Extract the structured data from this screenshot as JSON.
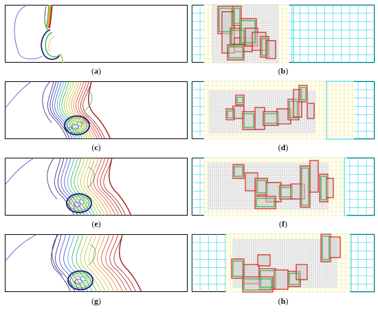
{
  "figure": {
    "panels": [
      {
        "id": "a",
        "caption_open": "(",
        "caption_letter": "a",
        "caption_close": ")",
        "kind": "contour"
      },
      {
        "id": "b",
        "caption_open": "(",
        "caption_letter": "b",
        "caption_close": ")",
        "kind": "mesh"
      },
      {
        "id": "c",
        "caption_open": "(",
        "caption_letter": "c",
        "caption_close": ")",
        "kind": "contour"
      },
      {
        "id": "d",
        "caption_open": "(",
        "caption_letter": "d",
        "caption_close": ")",
        "kind": "mesh"
      },
      {
        "id": "e",
        "caption_open": "(",
        "caption_letter": "e",
        "caption_close": ")",
        "kind": "contour"
      },
      {
        "id": "f",
        "caption_open": "(",
        "caption_letter": "f",
        "caption_close": ")",
        "kind": "mesh"
      },
      {
        "id": "g",
        "caption_open": "(",
        "caption_letter": "g",
        "caption_close": ")",
        "kind": "contour"
      },
      {
        "id": "h",
        "caption_open": "(",
        "caption_letter": "h",
        "caption_close": ")",
        "kind": "mesh"
      }
    ],
    "colors": {
      "frame": "#000000",
      "mesh_coarse": "#22d3e0",
      "mesh_medium": "#f4ea6a",
      "mesh_fine": "#9a9a9a",
      "patch_red": "#d42020",
      "patch_green": "#22a022",
      "contour_scale": [
        "#2a1f7a",
        "#3a4fd0",
        "#2aa0d8",
        "#2ab85a",
        "#a9c93a",
        "#e0c23a",
        "#e8902c",
        "#d8402a",
        "#a01a1a"
      ]
    }
  }
}
